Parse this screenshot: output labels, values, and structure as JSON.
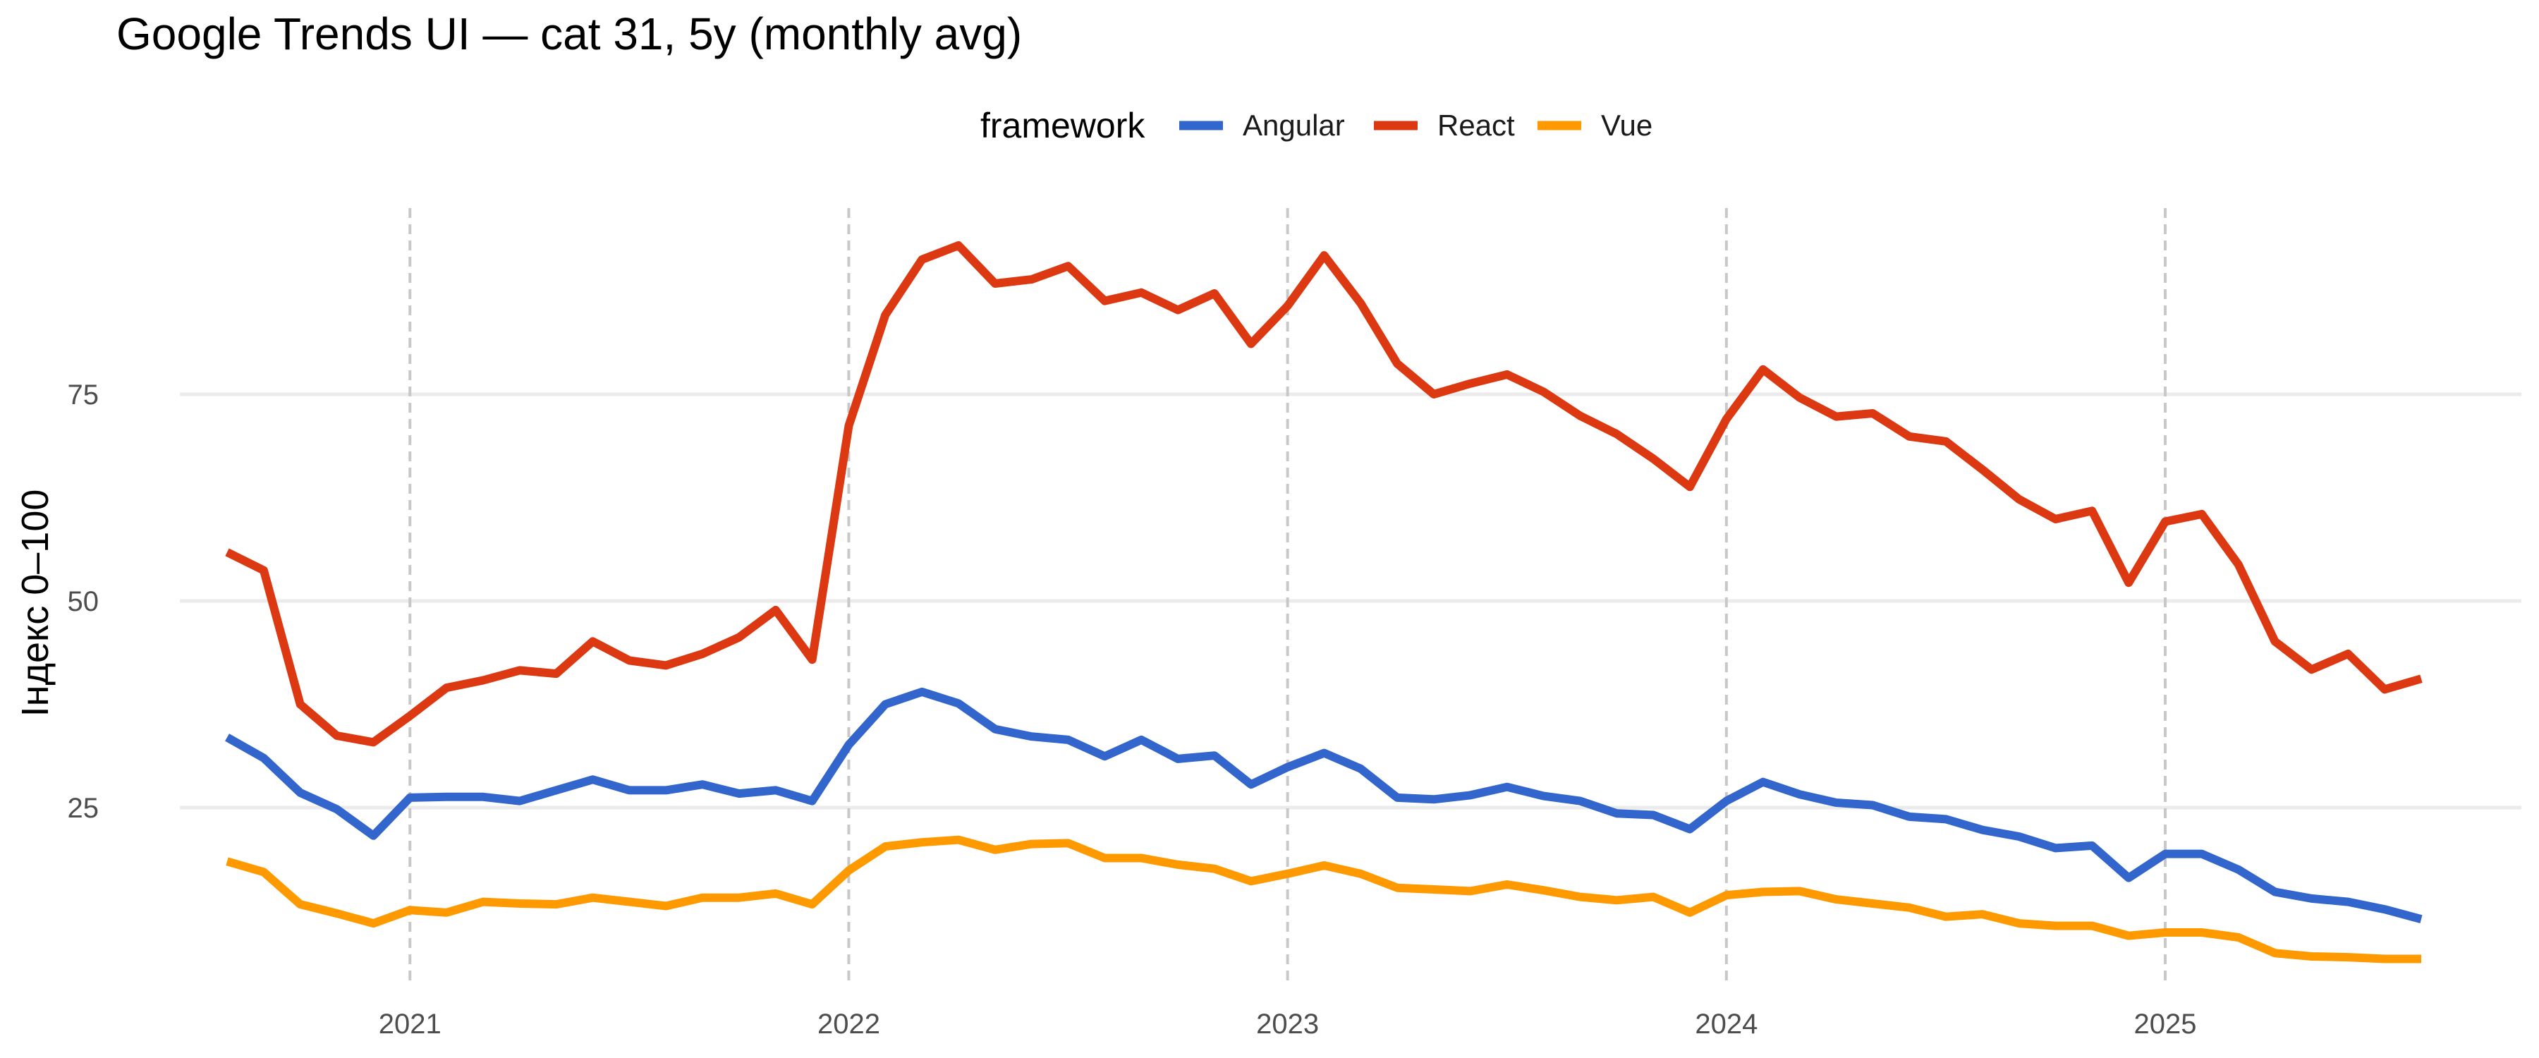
{
  "chart_data": {
    "type": "line",
    "title": "Google Trends UI — cat 31, 5y (monthly avg)",
    "xlabel": "",
    "ylabel": "Індекс 0–100",
    "legend": {
      "title": "framework",
      "position": "top"
    },
    "x_ticks": [
      "2021",
      "2022",
      "2023",
      "2024",
      "2025"
    ],
    "y_ticks": [
      25,
      50,
      75
    ],
    "grid": {
      "horizontal": true,
      "vertical_year_lines": "dashed"
    },
    "x_start": "2020-08",
    "x": [
      "2020-08",
      "2020-09",
      "2020-10",
      "2020-11",
      "2020-12",
      "2021-01",
      "2021-02",
      "2021-03",
      "2021-04",
      "2021-05",
      "2021-06",
      "2021-07",
      "2021-08",
      "2021-09",
      "2021-10",
      "2021-11",
      "2021-12",
      "2022-01",
      "2022-02",
      "2022-03",
      "2022-04",
      "2022-05",
      "2022-06",
      "2022-07",
      "2022-08",
      "2022-09",
      "2022-10",
      "2022-11",
      "2022-12",
      "2023-01",
      "2023-02",
      "2023-03",
      "2023-04",
      "2023-05",
      "2023-06",
      "2023-07",
      "2023-08",
      "2023-09",
      "2023-10",
      "2023-11",
      "2023-12",
      "2024-01",
      "2024-02",
      "2024-03",
      "2024-04",
      "2024-05",
      "2024-06",
      "2024-07",
      "2024-08",
      "2024-09",
      "2024-10",
      "2024-11",
      "2024-12",
      "2025-01",
      "2025-02",
      "2025-03",
      "2025-04",
      "2025-05",
      "2025-06",
      "2025-07",
      "2025-08"
    ],
    "ylim": [
      4,
      96
    ],
    "series": [
      {
        "name": "Angular",
        "color": "#3366CC",
        "values": [
          33.5,
          31.0,
          26.8,
          24.8,
          21.6,
          26.2,
          26.3,
          26.3,
          25.8,
          27.1,
          28.4,
          27.1,
          27.1,
          27.8,
          26.7,
          27.1,
          25.8,
          32.6,
          37.5,
          39.0,
          37.6,
          34.5,
          33.6,
          33.2,
          31.2,
          33.2,
          30.9,
          31.3,
          27.8,
          29.9,
          31.6,
          29.7,
          26.2,
          26.0,
          26.5,
          27.5,
          26.4,
          25.8,
          24.3,
          24.1,
          22.4,
          25.8,
          28.1,
          26.6,
          25.6,
          25.3,
          23.9,
          23.6,
          22.3,
          21.5,
          20.1,
          20.4,
          16.5,
          19.4,
          19.4,
          17.5,
          14.8,
          14.0,
          13.6,
          12.7,
          11.5
        ]
      },
      {
        "name": "React",
        "color": "#DC3912",
        "values": [
          55.9,
          53.7,
          37.5,
          33.7,
          32.9,
          36.1,
          39.5,
          40.4,
          41.6,
          41.2,
          45.1,
          42.8,
          42.2,
          43.6,
          45.6,
          48.9,
          42.9,
          71.2,
          84.6,
          91.3,
          93.0,
          88.4,
          88.9,
          90.5,
          86.3,
          87.3,
          85.2,
          87.2,
          81.1,
          85.7,
          91.8,
          86.0,
          78.7,
          75.0,
          76.3,
          77.4,
          75.3,
          72.4,
          70.2,
          67.2,
          63.8,
          72.0,
          78.0,
          74.6,
          72.3,
          72.7,
          69.9,
          69.3,
          65.9,
          62.3,
          59.9,
          60.9,
          52.2,
          59.6,
          60.5,
          54.4,
          45.1,
          41.7,
          43.6,
          39.3,
          40.6
        ]
      },
      {
        "name": "Vue",
        "color": "#FF9900",
        "values": [
          18.5,
          17.2,
          13.3,
          12.2,
          11.0,
          12.6,
          12.3,
          13.6,
          13.4,
          13.3,
          14.1,
          13.6,
          13.1,
          14.1,
          14.1,
          14.6,
          13.3,
          17.4,
          20.3,
          20.8,
          21.1,
          19.9,
          20.6,
          20.7,
          18.9,
          18.9,
          18.1,
          17.6,
          16.1,
          17.0,
          18.0,
          17.0,
          15.3,
          15.1,
          14.9,
          15.7,
          15.0,
          14.2,
          13.8,
          14.2,
          12.3,
          14.4,
          14.8,
          14.9,
          13.9,
          13.4,
          12.9,
          11.8,
          12.1,
          11.0,
          10.7,
          10.7,
          9.5,
          9.9,
          9.9,
          9.3,
          7.4,
          7.0,
          6.9,
          6.7,
          6.7
        ]
      }
    ]
  }
}
